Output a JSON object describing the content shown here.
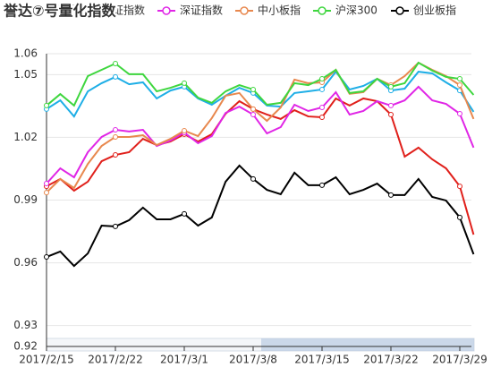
{
  "chart_data": {
    "type": "line",
    "title": "誉达⑦号量化指数",
    "categories": [
      "2017/2/15",
      null,
      null,
      null,
      null,
      "2017/2/22",
      null,
      null,
      null,
      null,
      "2017/3/1",
      null,
      null,
      null,
      null,
      "2017/3/8",
      null,
      null,
      null,
      null,
      "2017/3/15",
      null,
      null,
      null,
      null,
      "2017/3/22",
      null,
      null,
      null,
      null,
      "2017/3/29",
      null
    ],
    "ylim": [
      0.92,
      1.06
    ],
    "yticks": [
      0.92,
      0.93,
      0.96,
      0.99,
      1.02,
      1.05,
      1.06
    ],
    "grid": true,
    "legend": "top",
    "series": [
      {
        "name": "誉达⑦号量化指数",
        "color": "#e0201b",
        "values": [
          0.9966,
          1.0001,
          0.9945,
          0.9988,
          1.0086,
          1.0116,
          1.0129,
          1.0193,
          1.0163,
          1.018,
          1.0215,
          1.018,
          1.0215,
          1.0313,
          1.0373,
          1.0335,
          1.0309,
          1.0288,
          1.033,
          1.03,
          1.0296,
          1.0386,
          1.0352,
          1.0386,
          1.0373,
          1.0309,
          1.0108,
          1.0151,
          1.0095,
          1.0052,
          0.9966,
          0.9735
        ]
      },
      {
        "name": "上证指数",
        "color": "#1eaee6",
        "values": [
          1.0335,
          1.0377,
          1.03,
          1.042,
          1.0459,
          1.0489,
          1.0454,
          1.0463,
          1.0386,
          1.0424,
          1.0442,
          1.0386,
          1.0356,
          1.0399,
          1.0437,
          1.0412,
          1.0352,
          1.0347,
          1.0412,
          1.042,
          1.0429,
          1.0514,
          1.0429,
          1.0446,
          1.048,
          1.0424,
          1.0433,
          1.0514,
          1.0506,
          1.0463,
          1.0424,
          1.0322
        ]
      },
      {
        "name": "深证指数",
        "color": "#e026e6",
        "values": [
          0.9979,
          1.0052,
          1.0009,
          1.0129,
          1.0202,
          1.0236,
          1.0228,
          1.0236,
          1.0159,
          1.0185,
          1.0223,
          1.0172,
          1.0206,
          1.0317,
          1.0347,
          1.0309,
          1.0219,
          1.0249,
          1.0356,
          1.0326,
          1.0343,
          1.0416,
          1.0309,
          1.0326,
          1.0373,
          1.0352,
          1.0377,
          1.0442,
          1.0377,
          1.036,
          1.0313,
          1.0151
        ]
      },
      {
        "name": "中小板指",
        "color": "#e8884e",
        "values": [
          0.9936,
          1.0001,
          0.9958,
          1.0073,
          1.0159,
          1.0202,
          1.0202,
          1.021,
          1.0163,
          1.0193,
          1.0232,
          1.0206,
          1.0292,
          1.0399,
          1.0412,
          1.0335,
          1.0279,
          1.0343,
          1.0476,
          1.0459,
          1.0463,
          1.0523,
          1.0408,
          1.0416,
          1.048,
          1.045,
          1.0493,
          1.0557,
          1.0523,
          1.0493,
          1.045,
          1.0288
        ]
      },
      {
        "name": "沪深300",
        "color": "#3ed63e",
        "values": [
          1.0352,
          1.0407,
          1.0352,
          1.0493,
          1.0523,
          1.0553,
          1.0502,
          1.0502,
          1.042,
          1.0437,
          1.0459,
          1.039,
          1.0365,
          1.042,
          1.045,
          1.0429,
          1.0356,
          1.0365,
          1.0459,
          1.045,
          1.048,
          1.0523,
          1.0412,
          1.042,
          1.048,
          1.0442,
          1.0459,
          1.0557,
          1.0519,
          1.0489,
          1.048,
          1.0403
        ]
      },
      {
        "name": "创业板指",
        "color": "#000000",
        "values": [
          0.9628,
          0.9654,
          0.9585,
          0.9645,
          0.9778,
          0.9774,
          0.9804,
          0.9864,
          0.9808,
          0.9808,
          0.9834,
          0.9778,
          0.9817,
          0.9988,
          1.0065,
          1.0001,
          0.9949,
          0.9928,
          1.0031,
          0.9971,
          0.9971,
          1.0009,
          0.9928,
          0.9949,
          0.9979,
          0.9924,
          0.9924,
          1.0001,
          0.9915,
          0.9898,
          0.9817,
          0.9641
        ]
      }
    ]
  }
}
